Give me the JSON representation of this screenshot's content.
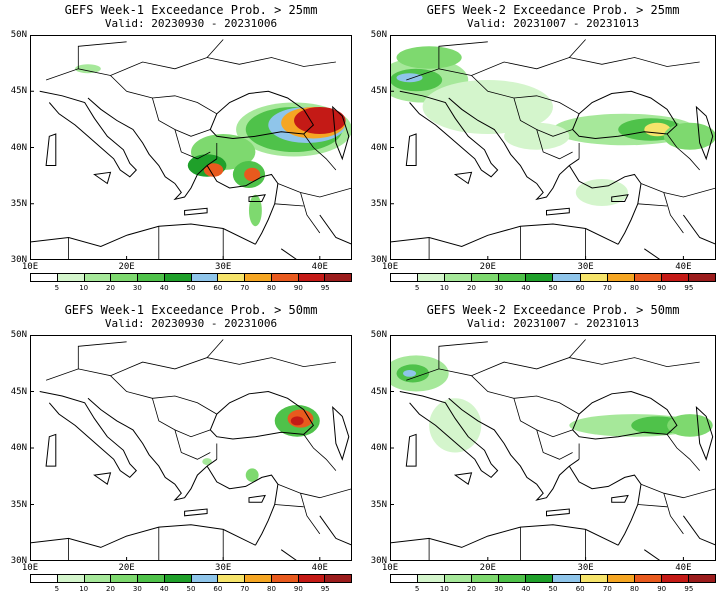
{
  "panels": [
    {
      "id": "p1",
      "title": "GEFS Week-1 Exceedance Prob. > 25mm",
      "valid": "Valid: 20230930 - 20231006"
    },
    {
      "id": "p2",
      "title": "GEFS Week-2 Exceedance Prob. > 25mm",
      "valid": "Valid: 20231007 - 20231013"
    },
    {
      "id": "p3",
      "title": "GEFS Week-1 Exceedance Prob. > 50mm",
      "valid": "Valid: 20230930 - 20231006"
    },
    {
      "id": "p4",
      "title": "GEFS Week-2 Exceedance Prob. > 50mm",
      "valid": "Valid: 20231007 - 20231013"
    }
  ],
  "lat_labels": [
    "50N",
    "45N",
    "40N",
    "35N",
    "30N"
  ],
  "lon_labels": [
    "10E",
    "20E",
    "30E",
    "40E"
  ],
  "colorbar": {
    "colors": [
      "#ffffff",
      "#d4f5cc",
      "#a6e89a",
      "#7ed96f",
      "#4fc24a",
      "#1fa02a",
      "#8fc5ea",
      "#f6e46b",
      "#f5a623",
      "#e85a1e",
      "#c41a16",
      "#9b1c1c"
    ],
    "labels": [
      "5",
      "10",
      "20",
      "30",
      "40",
      "50",
      "60",
      "70",
      "80",
      "90",
      "95"
    ]
  },
  "palette": {
    "c1": "#d4f5cc",
    "c2": "#a6e89a",
    "c3": "#7ed96f",
    "c4": "#4fc24a",
    "c5": "#1fa02a",
    "c6": "#8fc5ea",
    "c7": "#f6e46b",
    "c8": "#f5a623",
    "c9": "#e85a1e",
    "c10": "#c41a16"
  }
}
